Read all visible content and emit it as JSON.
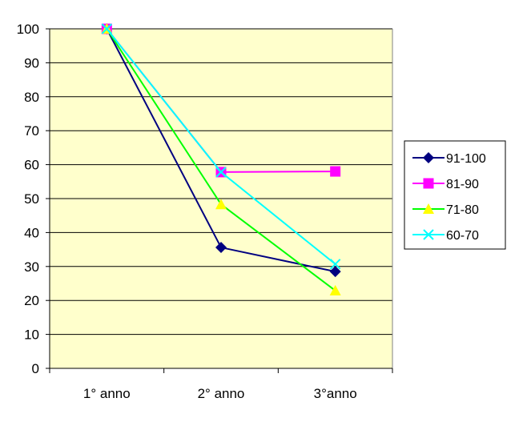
{
  "chart_data": {
    "type": "line",
    "categories": [
      "1° anno",
      "2° anno",
      "3°anno"
    ],
    "series": [
      {
        "name": "91-100",
        "values": [
          100,
          35.6,
          28.5
        ],
        "color": "#000080",
        "marker": "diamond"
      },
      {
        "name": "81-90",
        "values": [
          100,
          57.8,
          58
        ],
        "color": "#ff00ff",
        "marker": "square"
      },
      {
        "name": "71-80",
        "values": [
          100,
          48.3,
          22.9
        ],
        "color": "#00ff00",
        "line_color": "#00ff00",
        "marker_color": "#ffff00",
        "marker": "triangle"
      },
      {
        "name": "60-70",
        "values": [
          100,
          57.8,
          30.7
        ],
        "color": "#00ffff",
        "marker": "x"
      }
    ],
    "yticks": [
      0,
      10,
      20,
      30,
      40,
      50,
      60,
      70,
      80,
      90,
      100
    ],
    "ylim": [
      0,
      100
    ],
    "grid": true,
    "legend_position": "right",
    "plot_background": "#ffffcc"
  }
}
